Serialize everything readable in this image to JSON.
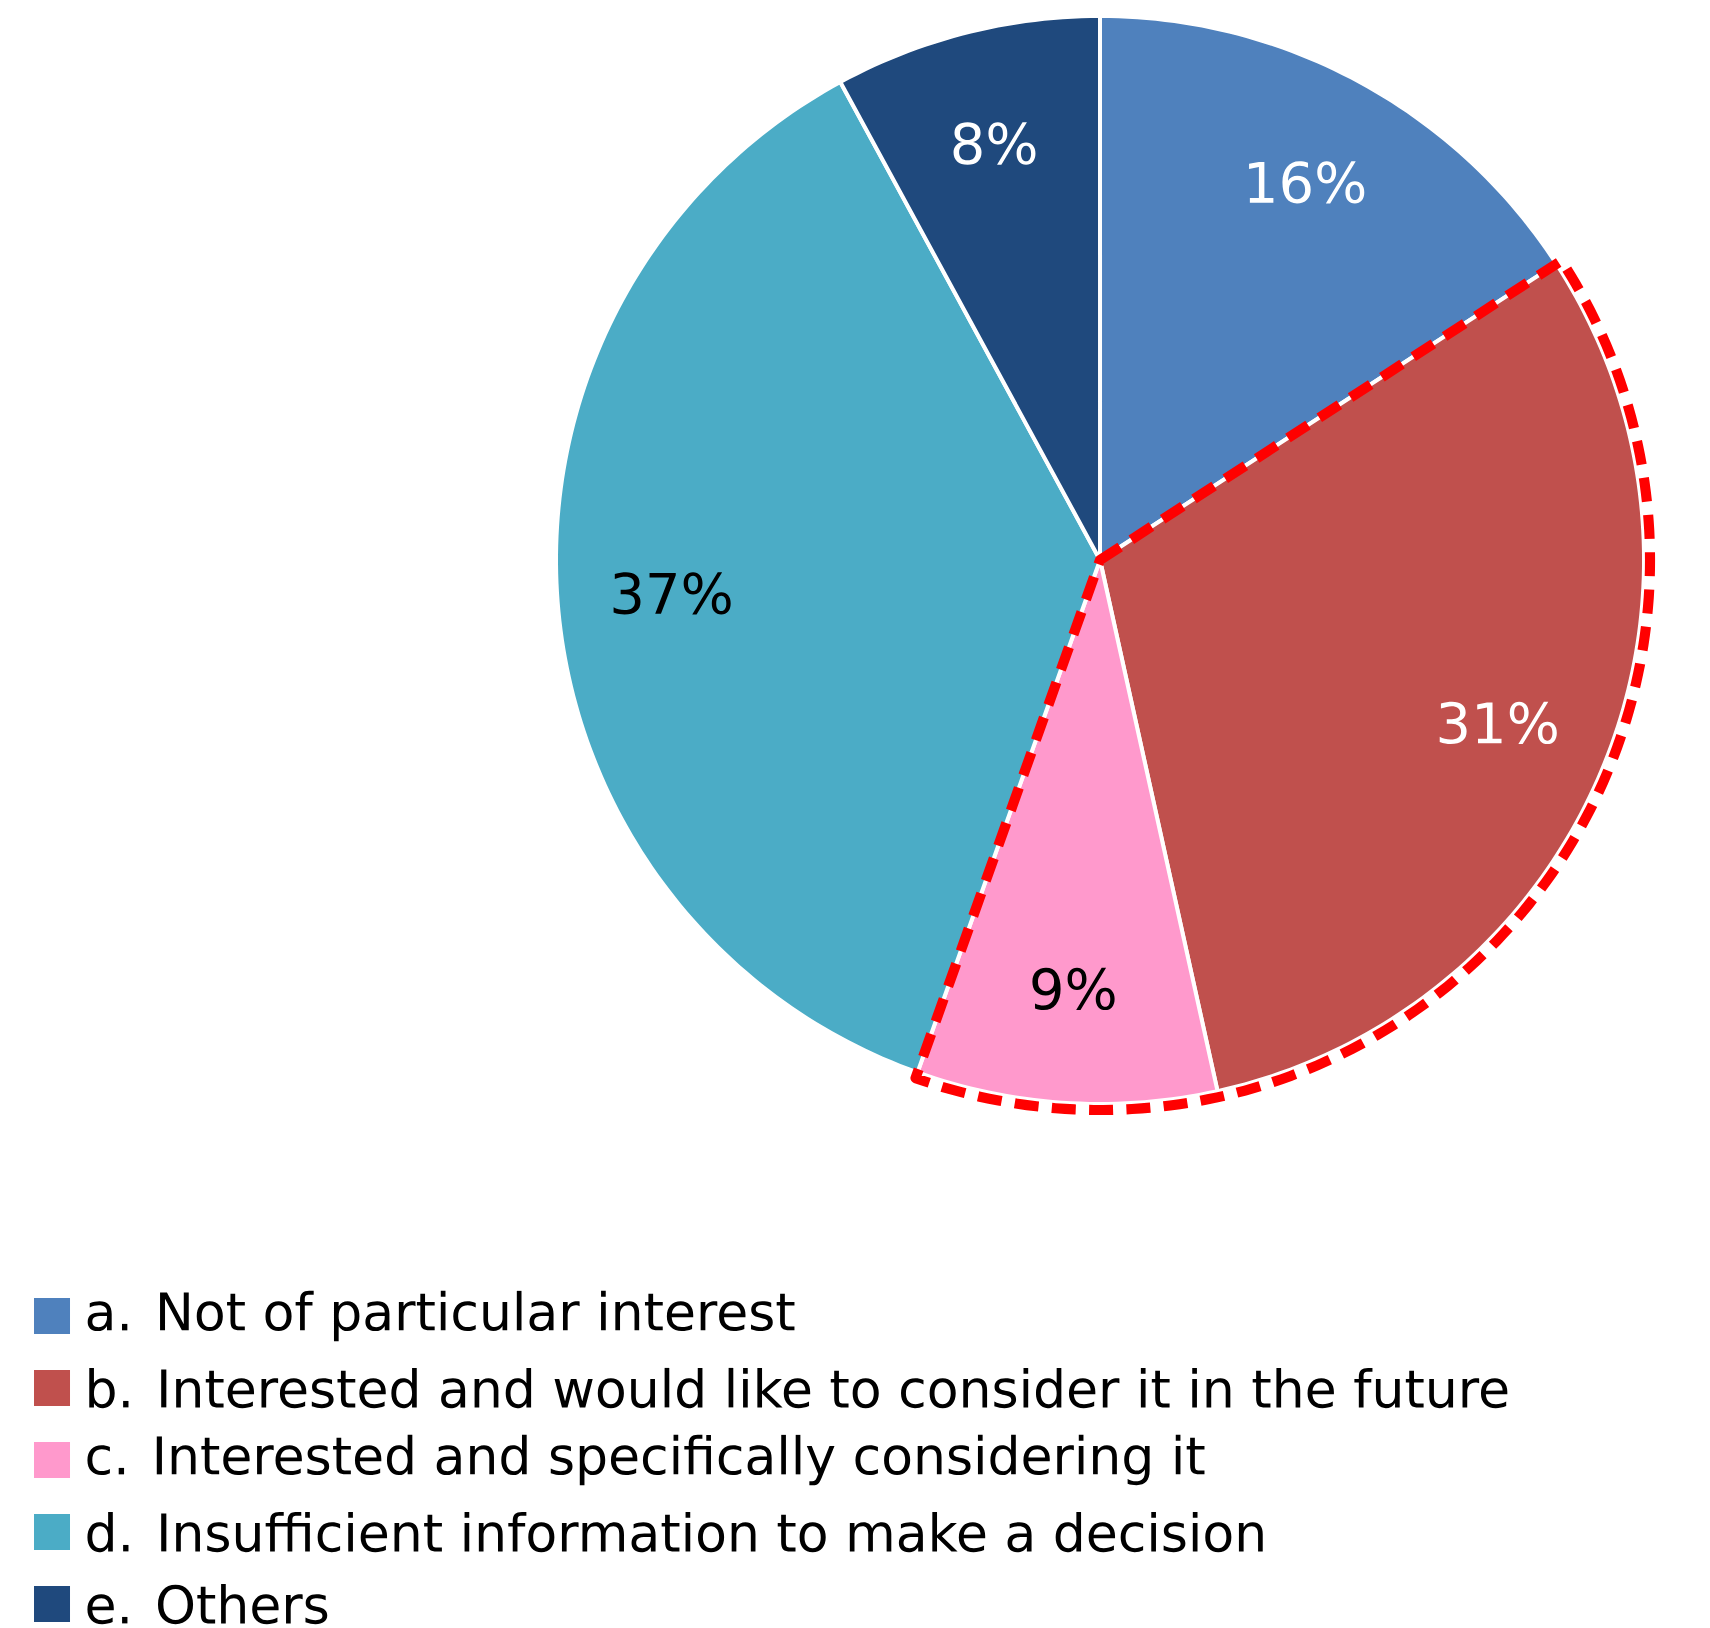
{
  "chart_data": {
    "type": "pie",
    "categories": [
      "a. Not of particular interest",
      "b. Interested and would like to consider it in the future",
      "c. Interested and specifically considering it",
      "d. Insufficient information to make a decision",
      "e. Others"
    ],
    "values": [
      16,
      31,
      9,
      37,
      8
    ],
    "colors": [
      "#4f81bd",
      "#c0504d",
      "#ff99cc",
      "#4bacc6",
      "#1f497d"
    ],
    "value_labels": [
      "16%",
      "31%",
      "9%",
      "37%",
      "8%"
    ],
    "legend": "bottom"
  }
}
